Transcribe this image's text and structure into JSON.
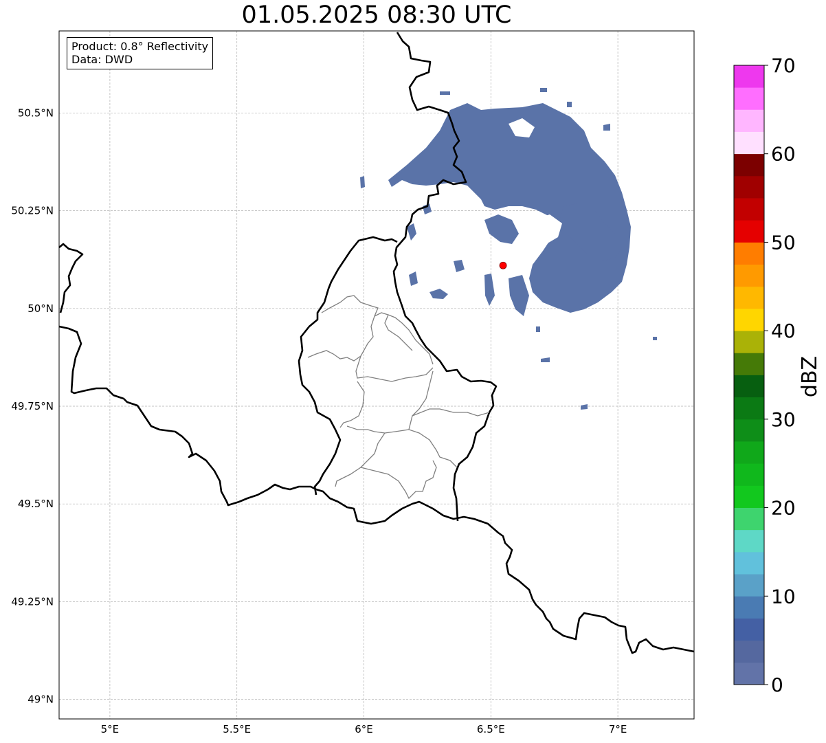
{
  "title": "01.05.2025 08:30 UTC",
  "info": {
    "product": "Product: 0.8° Reflectivity",
    "source": "Data: DWD"
  },
  "map": {
    "lon_range": [
      4.8,
      7.3
    ],
    "lat_range": [
      48.95,
      50.71
    ],
    "lon_ticks": [
      {
        "value": 5.0,
        "label": "5°E"
      },
      {
        "value": 5.5,
        "label": "5.5°E"
      },
      {
        "value": 6.0,
        "label": "6°E"
      },
      {
        "value": 6.5,
        "label": "6.5°E"
      },
      {
        "value": 7.0,
        "label": "7°E"
      }
    ],
    "lat_ticks": [
      {
        "value": 49.0,
        "label": "49°N"
      },
      {
        "value": 49.25,
        "label": "49.25°N"
      },
      {
        "value": 49.5,
        "label": "49.5°N"
      },
      {
        "value": 49.75,
        "label": "49.75°N"
      },
      {
        "value": 50.0,
        "label": "50°N"
      },
      {
        "value": 50.25,
        "label": "50.25°N"
      },
      {
        "value": 50.5,
        "label": "50.5°N"
      }
    ],
    "grid": true,
    "radar_site": {
      "lon": 6.548,
      "lat": 50.11,
      "color": "#ff0000"
    },
    "echo_color": "#5a73a8"
  },
  "colorbar": {
    "label": "dBZ",
    "min": 0,
    "max": 70,
    "ticks": [
      "0",
      "10",
      "20",
      "30",
      "40",
      "50",
      "60",
      "70"
    ],
    "colors": [
      "#6273a8",
      "#55689f",
      "#4460a4",
      "#4a7bb3",
      "#5aa1c8",
      "#61c1dc",
      "#5ed8c6",
      "#3ed46e",
      "#12c81e",
      "#10b81c",
      "#10a81a",
      "#0e8e18",
      "#0b7a14",
      "#075f10",
      "#457a07",
      "#aab207",
      "#ffd600",
      "#ffb800",
      "#ff9a00",
      "#ff7d00",
      "#e50000",
      "#c20000",
      "#a00000",
      "#7c0000",
      "#ffe0ff",
      "#ffb6ff",
      "#ff6eff",
      "#ee38ee"
    ]
  }
}
